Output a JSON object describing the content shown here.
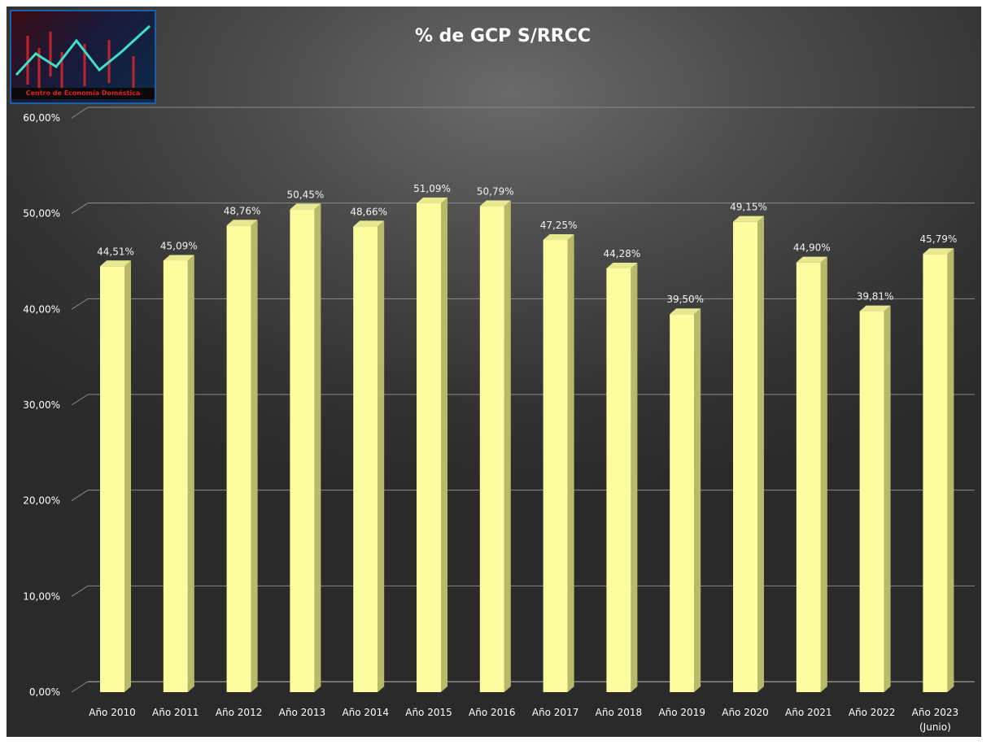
{
  "logo": {
    "caption": "Centro de Economía Doméstica"
  },
  "chart_data": {
    "type": "bar",
    "title": "% de GCP S/RRCC",
    "xlabel": "",
    "ylabel": "",
    "categories": [
      "Año 2010",
      "Año 2011",
      "Año 2012",
      "Año 2013",
      "Año 2014",
      "Año 2015",
      "Año 2016",
      "Año 2017",
      "Año 2018",
      "Año 2019",
      "Año 2020",
      "Año 2021",
      "Año 2022",
      "Año 2023"
    ],
    "category_notes": [
      "",
      "",
      "",
      "",
      "",
      "",
      "",
      "",
      "",
      "",
      "",
      "",
      "",
      "(Junio)"
    ],
    "values": [
      44.51,
      45.09,
      48.76,
      50.45,
      48.66,
      51.09,
      50.79,
      47.25,
      44.28,
      39.5,
      49.15,
      44.9,
      39.81,
      45.79
    ],
    "data_labels": [
      "44,51%",
      "45,09%",
      "48,76%",
      "50,45%",
      "48,66%",
      "51,09%",
      "50,79%",
      "47,25%",
      "44,28%",
      "39,50%",
      "49,15%",
      "44,90%",
      "39,81%",
      "45,79%"
    ],
    "y_ticks": [
      0,
      10,
      20,
      30,
      40,
      50,
      60
    ],
    "y_tick_labels": [
      "0,00%",
      "10,00%",
      "20,00%",
      "30,00%",
      "40,00%",
      "50,00%",
      "60,00%"
    ],
    "ylim": [
      0,
      60
    ],
    "grid": true,
    "legend": "none",
    "colors": {
      "bar_front": "#fdfd9f",
      "bar_side": "#b9b96a",
      "bar_top": "#e8e890",
      "grid": "#8a8a8a"
    }
  }
}
